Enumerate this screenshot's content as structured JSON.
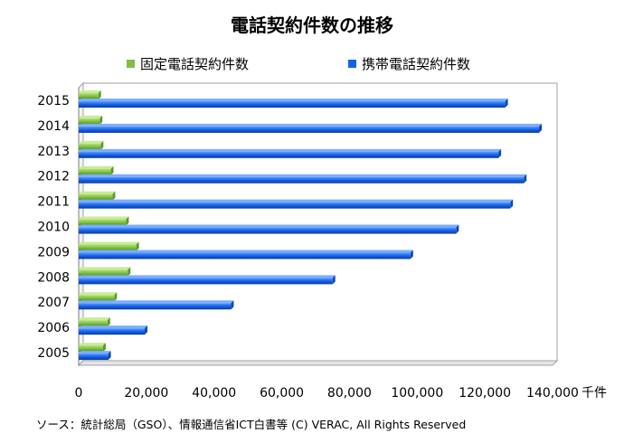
{
  "chart_data": {
    "type": "bar",
    "orientation": "horizontal",
    "title": "電話契約件数の推移",
    "categories": [
      "2005",
      "2006",
      "2007",
      "2008",
      "2009",
      "2010",
      "2011",
      "2012",
      "2013",
      "2014",
      "2015"
    ],
    "series": [
      {
        "name": "固定電話契約件数",
        "color": "#7ec040",
        "values": [
          7200,
          8500,
          10500,
          14500,
          17000,
          14000,
          10000,
          9500,
          6500,
          6200,
          5800
        ]
      },
      {
        "name": "携帯電話契約件数",
        "color": "#1462e8",
        "values": [
          8700,
          19500,
          45000,
          75000,
          98000,
          111500,
          127500,
          131500,
          124000,
          136000,
          126000
        ]
      }
    ],
    "x_ticks": [
      "0",
      "20,000",
      "40,000",
      "60,000",
      "80,000",
      "100,000",
      "120,000",
      "140,000"
    ],
    "x_unit": "千件",
    "xlim": [
      0,
      140000
    ],
    "grid": false,
    "legend_position": "top"
  },
  "source_note": "ソース：統計総局（GSO）、情報通信省ICT白書等  (C) VERAC,  All Rights Reserved"
}
